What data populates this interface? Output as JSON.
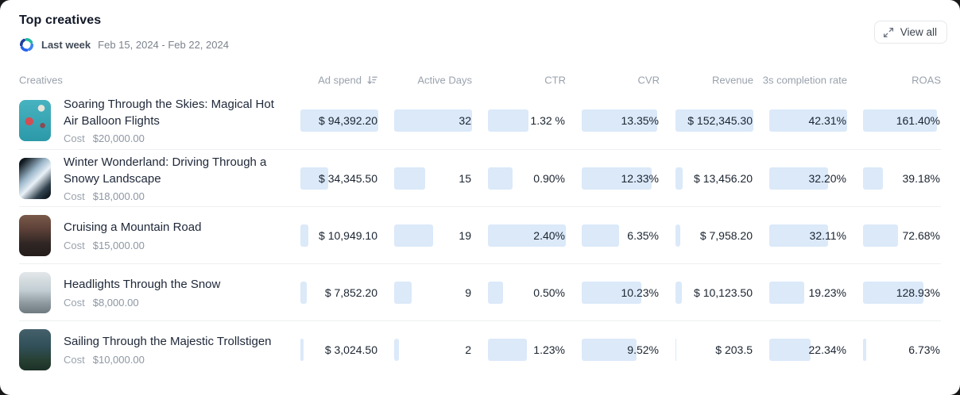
{
  "header": {
    "title": "Top creatives",
    "period_label": "Last week",
    "date_range": "Feb 15, 2024 - Feb 22, 2024",
    "view_all_label": "View all"
  },
  "colors": {
    "bar_fill": "#dbe9f9",
    "header_text": "#9aa2ad",
    "value_text": "#1b2430",
    "row_divider": "#edeff2"
  },
  "table": {
    "columns": [
      "Creatives",
      "Ad spend",
      "Active Days",
      "CTR",
      "CVR",
      "Revenue",
      "3s completion rate",
      "ROAS"
    ],
    "sorted_by": "Ad spend",
    "sort_direction": "descending",
    "rows": [
      {
        "title": "Soaring Through the Skies: Magical Hot Air Balloon Flights",
        "cost_label": "Cost",
        "cost": "$20,000.00",
        "thumb": {
          "name": "hot-air-balloons",
          "background": "radial-gradient(circle at 32% 52%, #cf4f55 0 13%, rgba(0,0,0,0) 14%), radial-gradient(circle at 70% 20%, #e8e4da 0 8%, rgba(0,0,0,0) 9%), radial-gradient(circle at 74% 62%, #8a4a52 0 7%, rgba(0,0,0,0) 8%), linear-gradient(180deg, #47b3c0, #2c99a9)"
        },
        "metrics": [
          {
            "column": "Ad spend",
            "text": "$ 94,392.20",
            "bar_pct": 100
          },
          {
            "column": "Active Days",
            "text": "32",
            "bar_pct": 100
          },
          {
            "column": "CTR",
            "text": "1.32 %",
            "bar_pct": 52
          },
          {
            "column": "CVR",
            "text": "13.35%",
            "bar_pct": 97
          },
          {
            "column": "Revenue",
            "text": "$ 152,345.30",
            "bar_pct": 100
          },
          {
            "column": "3s completion rate",
            "text": "42.31%",
            "bar_pct": 100
          },
          {
            "column": "ROAS",
            "text": "161.40%",
            "bar_pct": 95
          }
        ]
      },
      {
        "title": "Winter Wonderland: Driving Through a Snowy Landscape",
        "cost_label": "Cost",
        "cost": "$18,000.00",
        "thumb": {
          "name": "snowy-windshield",
          "background": "linear-gradient(135deg, #10191f 10%, #9db8cb 38%, #e9f1f7 55%, #31424e 78%, #0a1118 96%)"
        },
        "metrics": [
          {
            "column": "Ad spend",
            "text": "$ 34,345.50",
            "bar_pct": 36
          },
          {
            "column": "Active Days",
            "text": "15",
            "bar_pct": 40
          },
          {
            "column": "CTR",
            "text": "0.90%",
            "bar_pct": 32
          },
          {
            "column": "CVR",
            "text": "12.33%",
            "bar_pct": 90
          },
          {
            "column": "Revenue",
            "text": "$ 13,456.20",
            "bar_pct": 9
          },
          {
            "column": "3s completion rate",
            "text": "32.20%",
            "bar_pct": 76
          },
          {
            "column": "ROAS",
            "text": "39.18%",
            "bar_pct": 25
          }
        ]
      },
      {
        "title": "Cruising a Mountain Road",
        "cost_label": "Cost",
        "cost": "$15,000.00",
        "thumb": {
          "name": "mountain-road",
          "background": "linear-gradient(180deg, #7a5a49 0%, #5c4038 35%, #2f2624 70%, #241d1c 100%)"
        },
        "metrics": [
          {
            "column": "Ad spend",
            "text": "$ 10,949.10",
            "bar_pct": 10
          },
          {
            "column": "Active Days",
            "text": "19",
            "bar_pct": 50
          },
          {
            "column": "CTR",
            "text": "2.40%",
            "bar_pct": 100
          },
          {
            "column": "CVR",
            "text": "6.35%",
            "bar_pct": 48
          },
          {
            "column": "Revenue",
            "text": "$ 7,958.20",
            "bar_pct": 6
          },
          {
            "column": "3s completion rate",
            "text": "32.11%",
            "bar_pct": 76
          },
          {
            "column": "ROAS",
            "text": "72.68%",
            "bar_pct": 45
          }
        ]
      },
      {
        "title": "Headlights Through the Snow",
        "cost_label": "Cost",
        "cost": "$8,000.00",
        "thumb": {
          "name": "snowy-headlights",
          "background": "linear-gradient(180deg, #e3e7e9 0%, #c2cdd3 45%, #8e9aa0 75%, #6f7a80 100%)"
        },
        "metrics": [
          {
            "column": "Ad spend",
            "text": "$ 7,852.20",
            "bar_pct": 8
          },
          {
            "column": "Active Days",
            "text": "9",
            "bar_pct": 22
          },
          {
            "column": "CTR",
            "text": "0.50%",
            "bar_pct": 19
          },
          {
            "column": "CVR",
            "text": "10.23%",
            "bar_pct": 77
          },
          {
            "column": "Revenue",
            "text": "$ 10,123.50",
            "bar_pct": 8
          },
          {
            "column": "3s completion rate",
            "text": "19.23%",
            "bar_pct": 45
          },
          {
            "column": "ROAS",
            "text": "128.93%",
            "bar_pct": 78
          }
        ]
      },
      {
        "title": "Sailing Through the Majestic Trollstigen",
        "cost_label": "Cost",
        "cost": "$10,000.00",
        "thumb": {
          "name": "fjord-trollstigen",
          "background": "linear-gradient(180deg, #44606b 0%, #31505a 40%, #274034 75%, #1c3027 100%)"
        },
        "metrics": [
          {
            "column": "Ad spend",
            "text": "$ 3,024.50",
            "bar_pct": 4
          },
          {
            "column": "Active Days",
            "text": "2",
            "bar_pct": 6
          },
          {
            "column": "CTR",
            "text": "1.23%",
            "bar_pct": 50
          },
          {
            "column": "CVR",
            "text": "9.52%",
            "bar_pct": 70
          },
          {
            "column": "Revenue",
            "text": "$ 203.5",
            "bar_pct": 1
          },
          {
            "column": "3s completion rate",
            "text": "22.34%",
            "bar_pct": 53
          },
          {
            "column": "ROAS",
            "text": "6.73%",
            "bar_pct": 4
          }
        ]
      }
    ]
  }
}
